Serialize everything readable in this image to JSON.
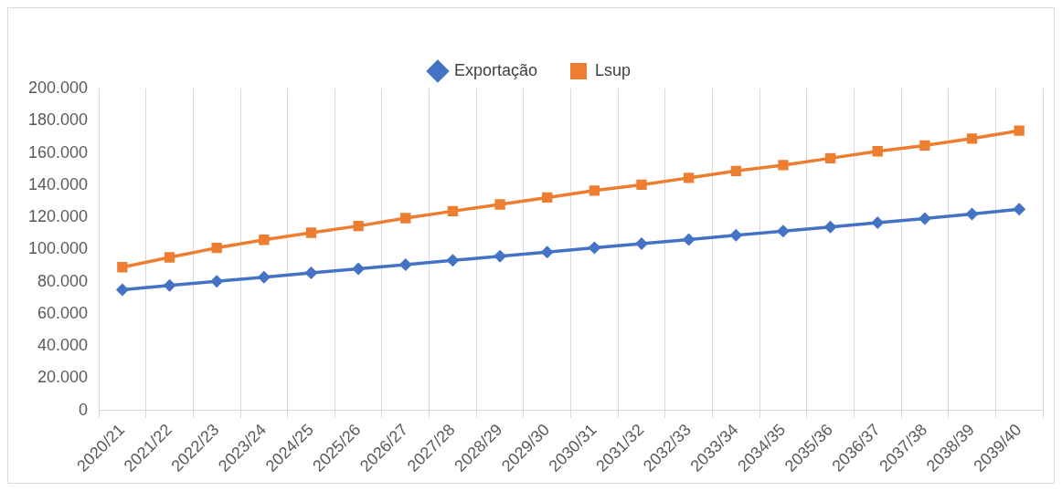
{
  "chart_data": {
    "type": "line",
    "categories": [
      "2020/21",
      "2021/22",
      "2022/23",
      "2023/24",
      "2024/25",
      "2025/26",
      "2026/27",
      "2027/28",
      "2028/29",
      "2029/30",
      "2030/31",
      "2031/32",
      "2032/33",
      "2033/34",
      "2034/35",
      "2035/36",
      "2036/37",
      "2037/38",
      "2038/39",
      "2039/40"
    ],
    "series": [
      {
        "name": "Exportação",
        "color": "#4472c4",
        "marker": "diamond",
        "values": [
          75000,
          77600,
          80200,
          82800,
          85400,
          88000,
          90600,
          93200,
          95800,
          98400,
          101000,
          103600,
          106200,
          108800,
          111400,
          114000,
          116600,
          119200,
          122000,
          125000
        ]
      },
      {
        "name": "Lsup",
        "color": "#ed7d31",
        "marker": "square",
        "values": [
          89000,
          95100,
          101000,
          106000,
          110400,
          114600,
          119500,
          123800,
          128000,
          132300,
          136600,
          140200,
          144500,
          148800,
          152400,
          156700,
          161000,
          164600,
          168900,
          173800
        ]
      }
    ],
    "ylim": [
      0,
      200000
    ],
    "yticks": [
      {
        "value": 0,
        "label": "0"
      },
      {
        "value": 20000,
        "label": "20.000"
      },
      {
        "value": 40000,
        "label": "40.000"
      },
      {
        "value": 60000,
        "label": "60.000"
      },
      {
        "value": 80000,
        "label": "80.000"
      },
      {
        "value": 100000,
        "label": "100.000"
      },
      {
        "value": 120000,
        "label": "120.000"
      },
      {
        "value": 140000,
        "label": "140.000"
      },
      {
        "value": 160000,
        "label": "160.000"
      },
      {
        "value": 180000,
        "label": "180.000"
      },
      {
        "value": 200000,
        "label": "200.000"
      }
    ],
    "grid": "x",
    "legend": "top",
    "line_style": "solid"
  }
}
